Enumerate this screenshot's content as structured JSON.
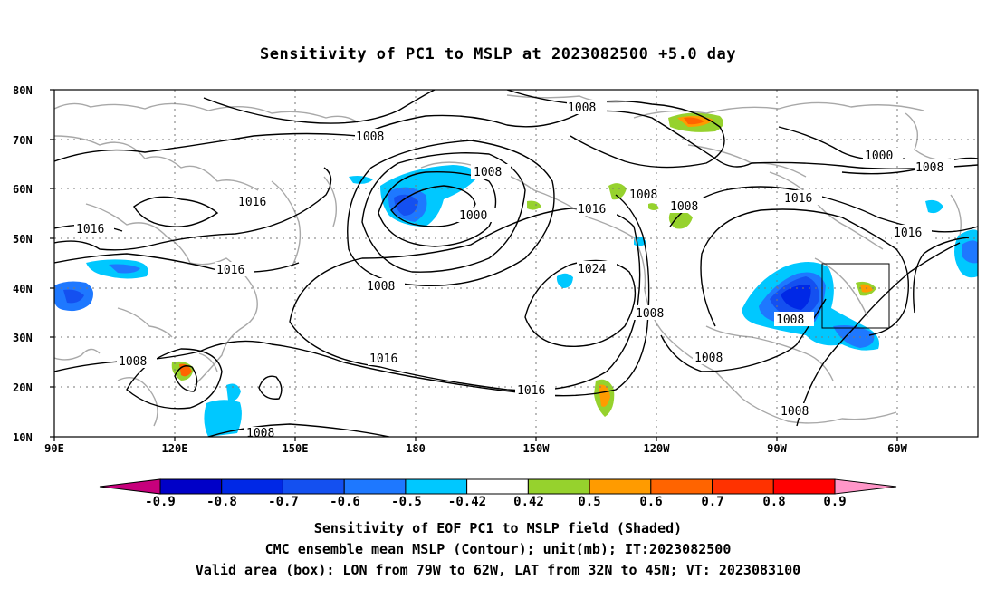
{
  "title": "Sensitivity of PC1 to MSLP at 2023082500 +5.0 day",
  "map": {
    "lat_ticks": [
      "80N",
      "70N",
      "60N",
      "50N",
      "40N",
      "30N",
      "20N",
      "10N"
    ],
    "lon_ticks": [
      "90E",
      "120E",
      "150E",
      "180",
      "150W",
      "120W",
      "90W",
      "60W"
    ],
    "lon_range": [
      "90E",
      "40W"
    ],
    "lat_range": [
      "10N",
      "80N"
    ],
    "grid": "dotted",
    "contour_color": "#000000",
    "coast_color": "#a8a8a8",
    "contour_labels": [
      {
        "text": "1008"
      },
      {
        "text": "1008"
      },
      {
        "text": "1008"
      },
      {
        "text": "1008"
      },
      {
        "text": "1016"
      },
      {
        "text": "1016"
      },
      {
        "text": "1016"
      },
      {
        "text": "1008"
      },
      {
        "text": "1000"
      },
      {
        "text": "1016"
      },
      {
        "text": "1008"
      },
      {
        "text": "1008"
      },
      {
        "text": "1016"
      },
      {
        "text": "1000"
      },
      {
        "text": "1008"
      },
      {
        "text": "1016"
      },
      {
        "text": "1024"
      },
      {
        "text": "1008"
      },
      {
        "text": "1008"
      },
      {
        "text": "1008"
      },
      {
        "text": "1016"
      },
      {
        "text": "1016"
      },
      {
        "text": "1008"
      },
      {
        "text": "1008"
      },
      {
        "text": "1008"
      }
    ],
    "valid_box": {
      "lon_from": "79W",
      "lon_to": "62W",
      "lat_from": "32N",
      "lat_to": "45N"
    }
  },
  "colorbar": {
    "labels": [
      "-0.9",
      "-0.8",
      "-0.7",
      "-0.6",
      "-0.5",
      "-0.42",
      "0.42",
      "0.5",
      "0.6",
      "0.7",
      "0.8",
      "0.9"
    ],
    "colors": [
      "#c7007c",
      "#0000c8",
      "#0028e6",
      "#1450f0",
      "#1e78ff",
      "#00c8ff",
      "#ffffff",
      "#96d22d",
      "#ff9b00",
      "#ff6400",
      "#ff3200",
      "#ff0000",
      "#ff96c8"
    ]
  },
  "captions": {
    "line1": "Sensitivity of EOF PC1 to MSLP field (Shaded)",
    "line2": "CMC ensemble mean MSLP (Contour); unit(mb); IT:2023082500",
    "line3": "Valid area (box): LON from 79W to 62W, LAT from 32N to 45N; VT: 2023083100"
  }
}
